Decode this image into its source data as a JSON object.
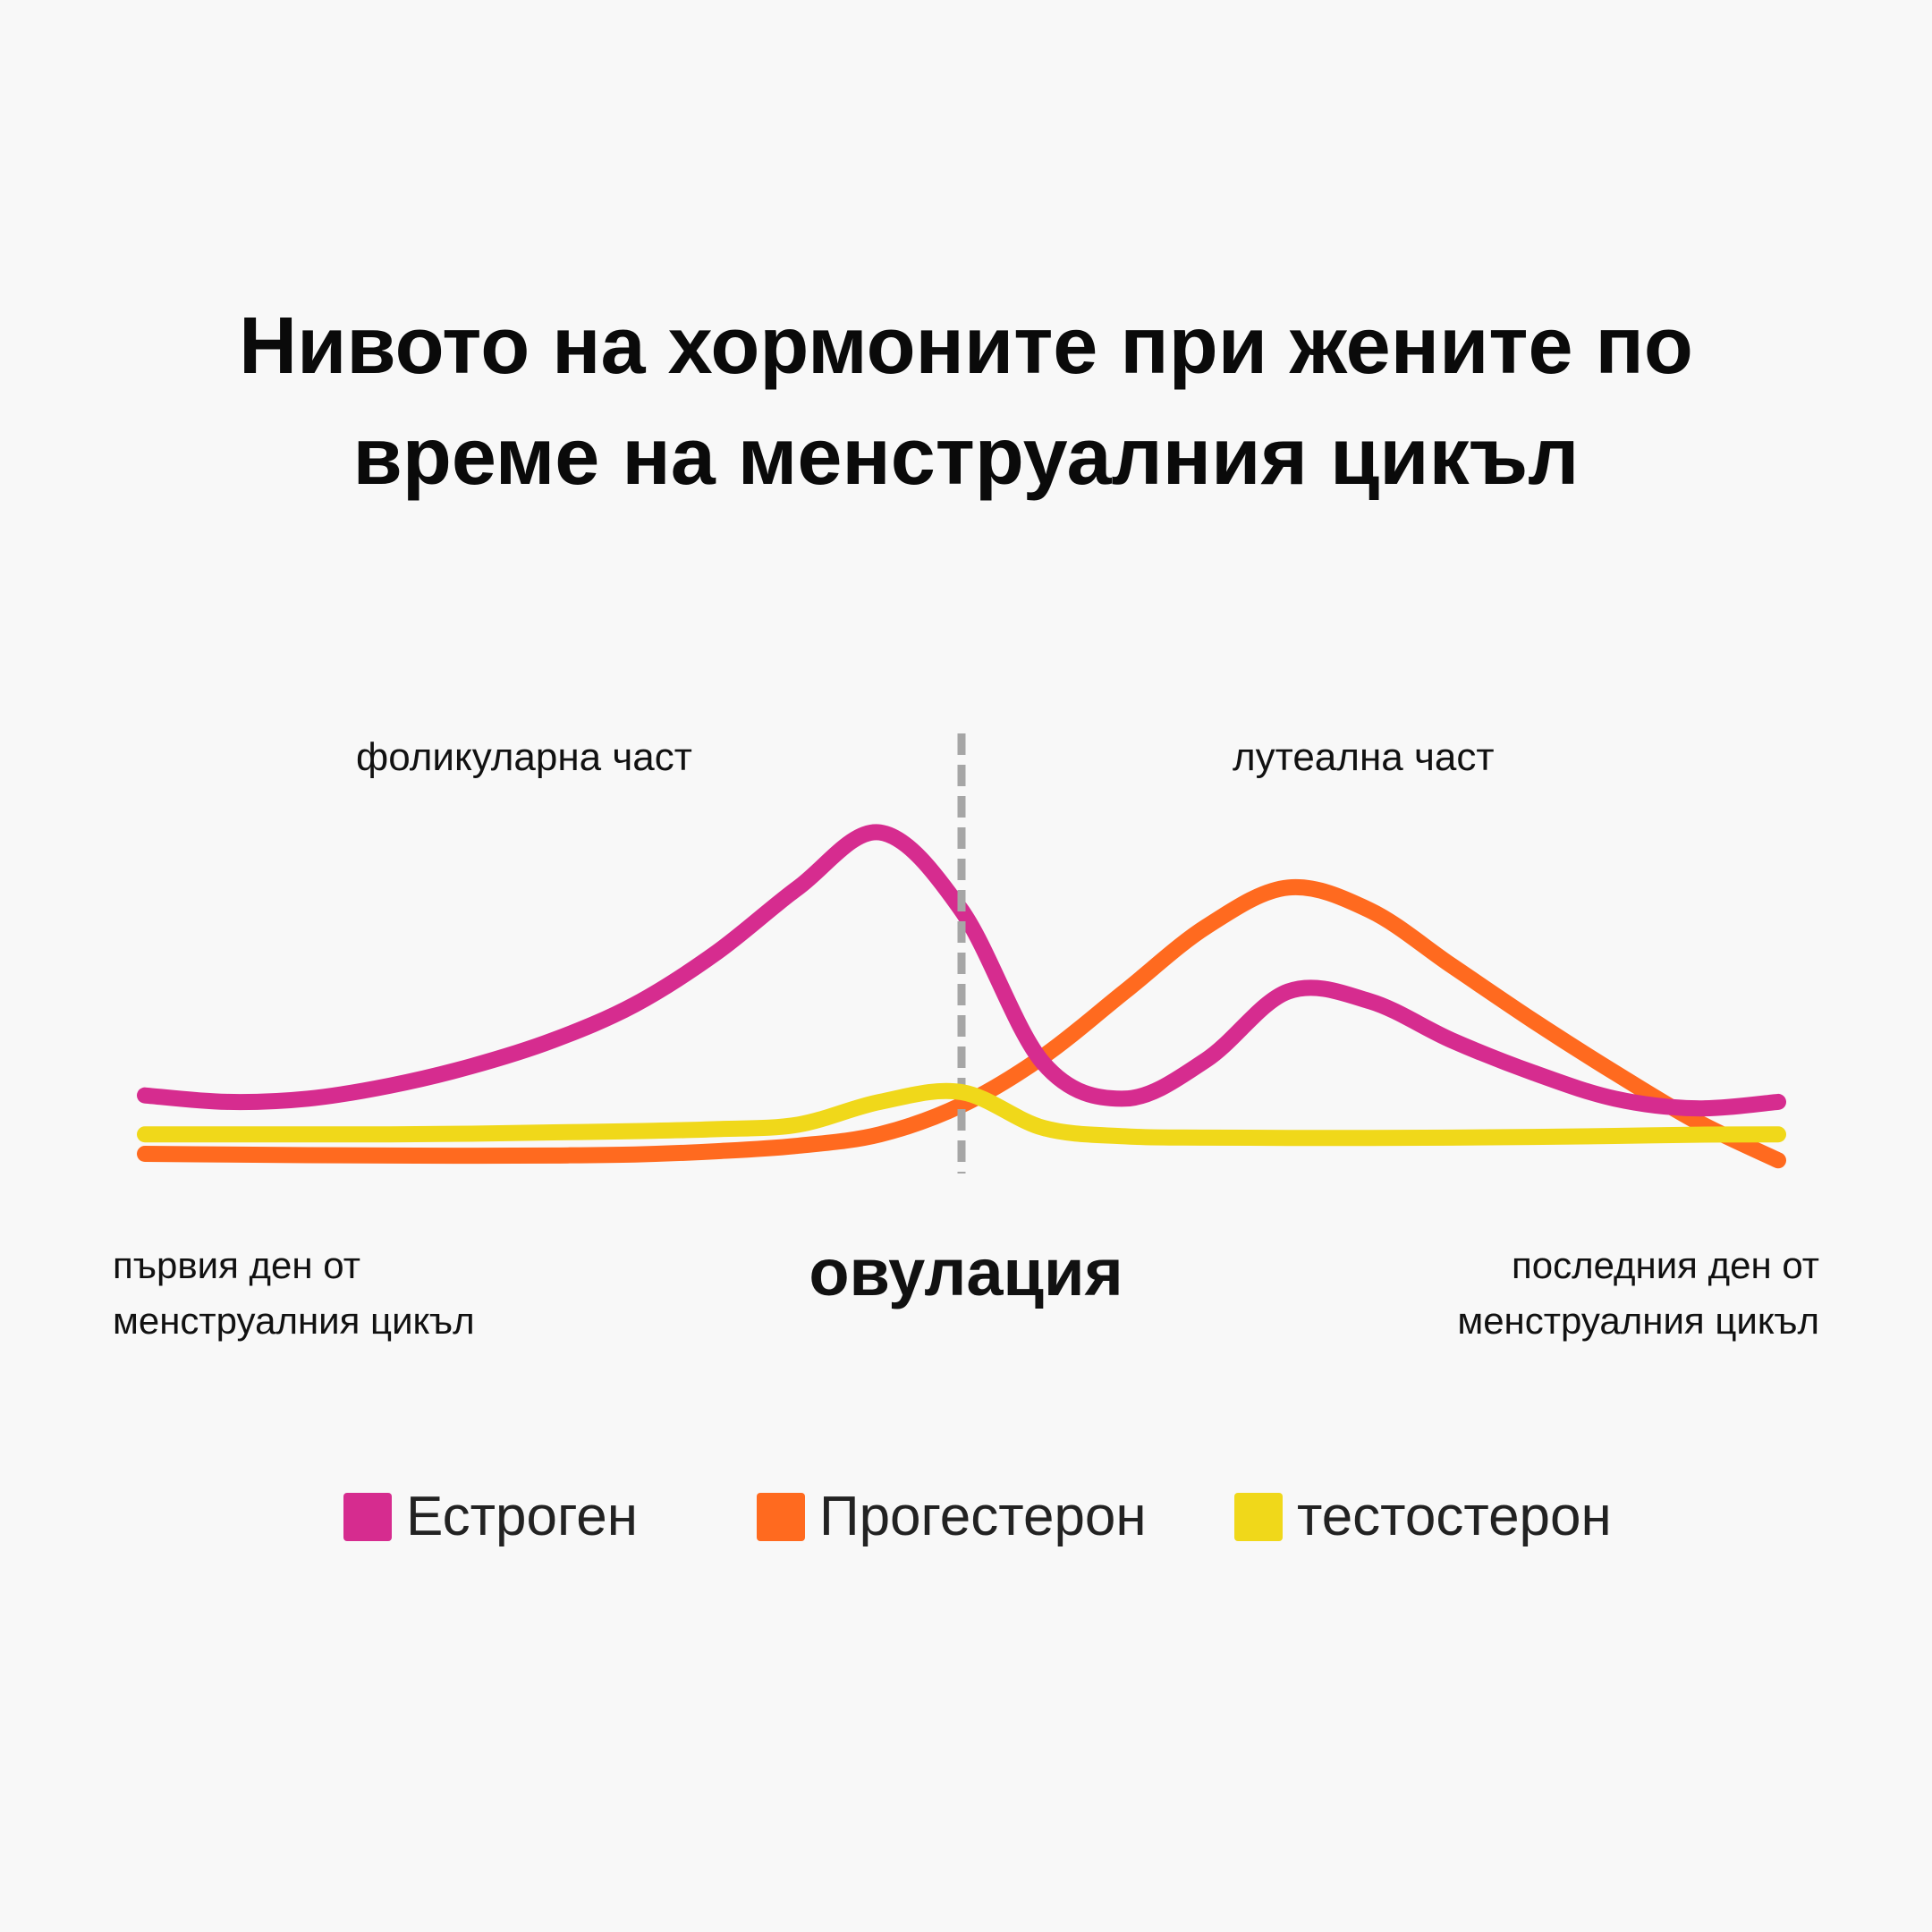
{
  "chart_data": {
    "type": "line",
    "title": "Нивото на хормоните при жените по време на менструалния цикъл",
    "title_lines": [
      "Нивото на хормоните при жените по",
      "време на менструалния цикъл"
    ],
    "xlabel": "",
    "ylabel": "",
    "x": [
      0,
      5,
      10,
      15,
      20,
      25,
      30,
      35,
      40,
      45,
      50,
      55,
      60,
      65,
      70,
      75,
      80,
      85,
      90,
      95,
      100
    ],
    "xlim": [
      0,
      100
    ],
    "ylim": [
      0,
      100
    ],
    "grid": false,
    "legend": "bottom",
    "series": [
      {
        "name": "Естроген",
        "color": "#d62c8f",
        "values": [
          18,
          16,
          17,
          21,
          27,
          35,
          46,
          62,
          82,
          99,
          75,
          28,
          17,
          29,
          50,
          47,
          35,
          25,
          17,
          14,
          16
        ]
      },
      {
        "name": "Прогестерон",
        "color": "#ff6a1f",
        "values": [
          0,
          -0.2,
          -0.4,
          -0.5,
          -0.6,
          -0.5,
          -0.2,
          0.8,
          2.5,
          6,
          15,
          30,
          50,
          70,
          82,
          75,
          58,
          41,
          25,
          10,
          -2
        ]
      },
      {
        "name": "тестостерон",
        "color": "#f0d81a",
        "values": [
          6,
          6,
          6,
          6,
          6.2,
          6.6,
          7,
          7.6,
          9,
          16,
          19,
          8,
          5.4,
          5,
          4.9,
          4.9,
          5,
          5.2,
          5.5,
          5.9,
          6
        ]
      }
    ],
    "annotations": {
      "ovulation_x": 50,
      "phase_left": "фоликуларна част",
      "phase_right": "лутеална част",
      "ovulation_label": "овулация",
      "start_label": [
        "първия ден от",
        "менструалния цикъл"
      ],
      "end_label": [
        "последния ден от",
        "менструалния цикъл"
      ],
      "marker_color": "#a6a6a6"
    }
  }
}
